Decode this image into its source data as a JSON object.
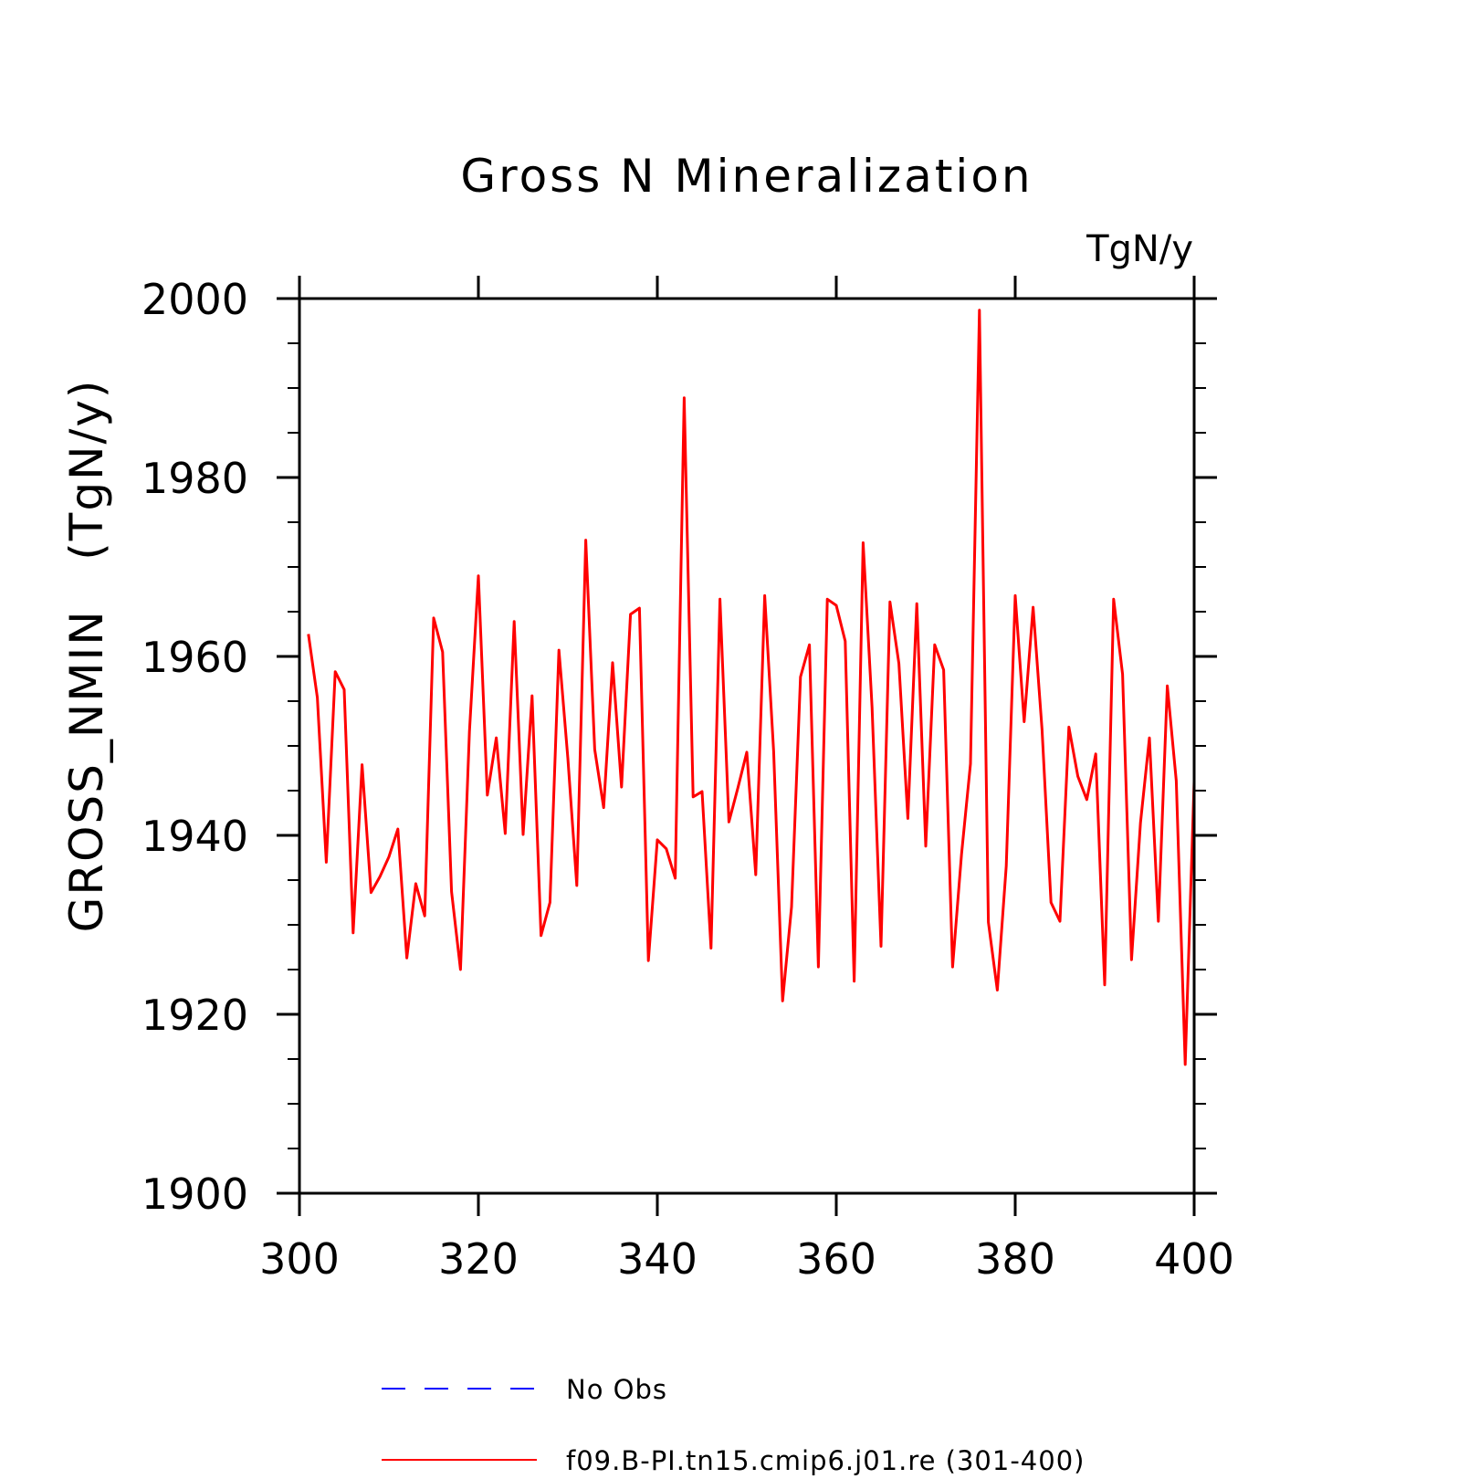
{
  "chart_data": {
    "type": "line",
    "title": "Gross N Mineralization",
    "units_label": "TgN/y",
    "ylabel": "GROSS_NMIN   (TgN/y)",
    "xlabel": "",
    "xlim": [
      300,
      400
    ],
    "ylim": [
      1900,
      2000
    ],
    "x_ticks": [
      300,
      320,
      340,
      360,
      380,
      400
    ],
    "y_ticks": [
      1900,
      1920,
      1940,
      1960,
      1980,
      2000
    ],
    "x_minor_step": 20,
    "y_minor_step": 5,
    "grid": false,
    "legend_position": "bottom",
    "series": [
      {
        "name": "f09.B-PI.tn15.cmip6.j01.re (301-400)",
        "color": "#ff0000",
        "style": "solid",
        "x": [
          301,
          302,
          303,
          304,
          305,
          306,
          307,
          308,
          309,
          310,
          311,
          312,
          313,
          314,
          315,
          316,
          317,
          318,
          319,
          320,
          321,
          322,
          323,
          324,
          325,
          326,
          327,
          328,
          329,
          330,
          331,
          332,
          333,
          334,
          335,
          336,
          337,
          338,
          339,
          340,
          341,
          342,
          343,
          344,
          345,
          346,
          347,
          348,
          349,
          350,
          351,
          352,
          353,
          354,
          355,
          356,
          357,
          358,
          359,
          360,
          361,
          362,
          363,
          364,
          365,
          366,
          367,
          368,
          369,
          370,
          371,
          372,
          373,
          374,
          375,
          376,
          377,
          378,
          379,
          380,
          381,
          382,
          383,
          384,
          385,
          386,
          387,
          388,
          389,
          390,
          391,
          392,
          393,
          394,
          395,
          396,
          397,
          398,
          399,
          400
        ],
        "values": [
          1962.5,
          1955.4,
          1937.0,
          1958.3,
          1956.3,
          1929.1,
          1947.9,
          1933.6,
          1935.4,
          1937.6,
          1940.7,
          1926.3,
          1934.6,
          1931.0,
          1964.3,
          1960.5,
          1933.7,
          1925.0,
          1951.6,
          1969.0,
          1944.5,
          1950.9,
          1940.2,
          1963.9,
          1940.1,
          1955.6,
          1928.8,
          1932.5,
          1960.7,
          1948.6,
          1934.4,
          1973.0,
          1949.6,
          1943.1,
          1959.3,
          1945.4,
          1964.7,
          1965.4,
          1926.0,
          1939.5,
          1938.5,
          1935.2,
          1988.9,
          1944.3,
          1944.9,
          1927.4,
          1966.4,
          1941.5,
          1945.3,
          1949.3,
          1935.6,
          1966.8,
          1949.4,
          1921.5,
          1932.0,
          1957.7,
          1961.3,
          1925.3,
          1966.4,
          1965.7,
          1961.7,
          1923.7,
          1972.7,
          1954.3,
          1927.6,
          1966.1,
          1959.2,
          1941.9,
          1965.9,
          1938.8,
          1961.3,
          1958.5,
          1925.3,
          1937.9,
          1948.0,
          1998.7,
          1930.3,
          1922.7,
          1936.6,
          1966.8,
          1952.7,
          1965.5,
          1951.8,
          1932.5,
          1930.4,
          1952.1,
          1946.6,
          1944.0,
          1949.1,
          1923.3,
          1966.4,
          1958.0,
          1926.1,
          1941.4,
          1950.9,
          1930.4,
          1956.7,
          1946.1,
          1914.4,
          1946.0
        ]
      },
      {
        "name": "No Obs",
        "color": "#0000ff",
        "style": "dashed",
        "x": [],
        "values": []
      }
    ]
  }
}
